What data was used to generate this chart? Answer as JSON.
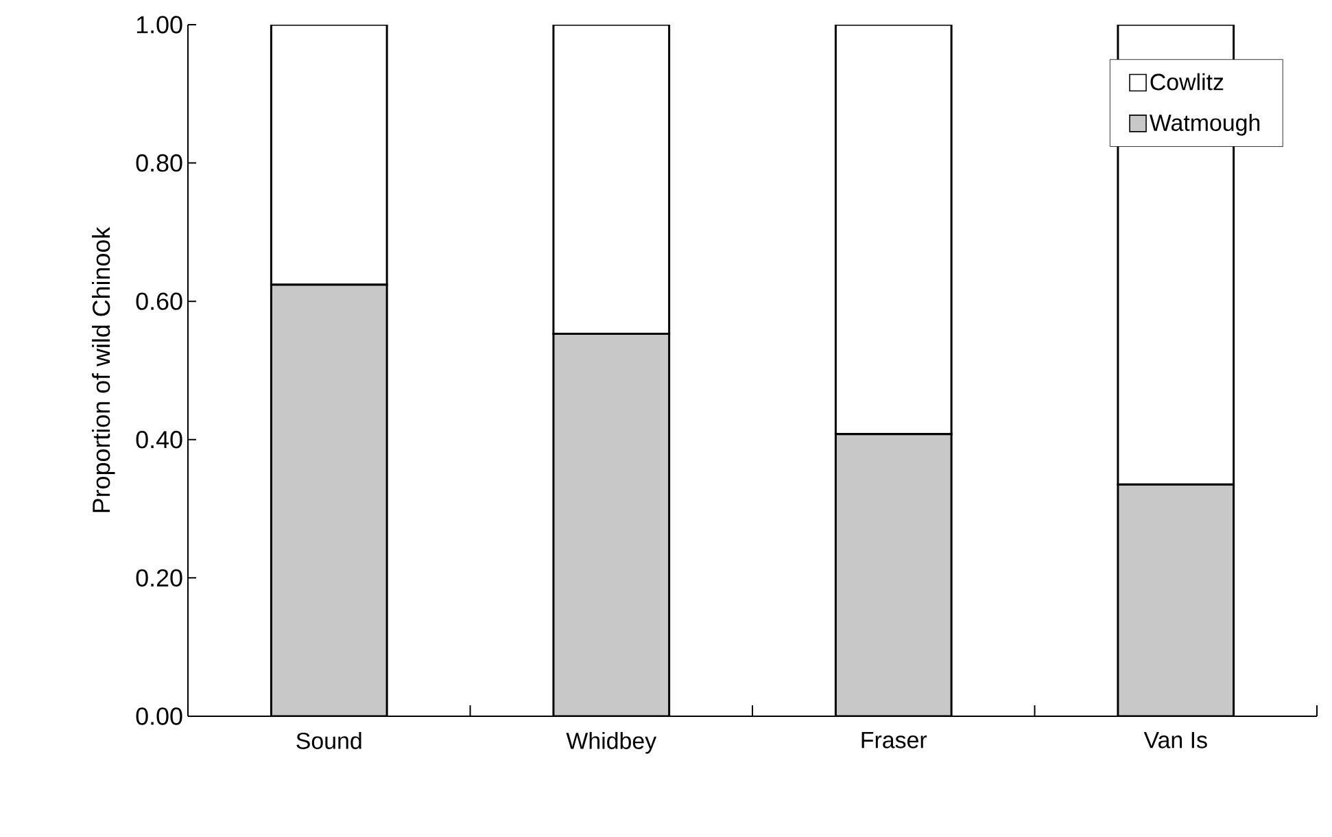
{
  "chart_data": {
    "type": "bar",
    "stacked": true,
    "ylabel": "Proportion of wild Chinook",
    "categories": [
      "Sound",
      "Whidbey",
      "Fraser",
      "Van Is"
    ],
    "series": [
      {
        "name": "Watmough",
        "color": "#c8c8c8",
        "values": [
          0.624,
          0.553,
          0.408,
          0.335
        ]
      },
      {
        "name": "Cowlitz",
        "color": "#ffffff",
        "values": [
          0.376,
          0.447,
          0.592,
          0.665
        ]
      }
    ],
    "ylim": [
      0,
      1
    ],
    "yticks": [
      {
        "value": 0,
        "label": "0.00"
      },
      {
        "value": 0.2,
        "label": "0.20"
      },
      {
        "value": 0.4,
        "label": "0.40"
      },
      {
        "value": 0.6,
        "label": "0.60"
      },
      {
        "value": 0.8,
        "label": "0.80"
      },
      {
        "value": 1,
        "label": "1.00"
      }
    ],
    "grid": false,
    "legend": "top right"
  }
}
